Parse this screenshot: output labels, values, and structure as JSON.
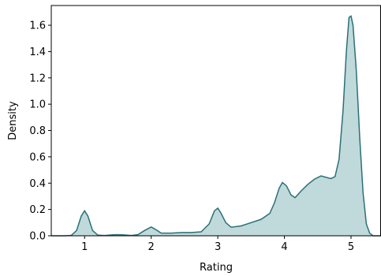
{
  "chart_data": {
    "type": "area",
    "title": "",
    "xlabel": "Rating",
    "ylabel": "Density",
    "xlim": [
      0.5,
      5.45
    ],
    "ylim": [
      0,
      1.75
    ],
    "x_ticks": [
      1,
      2,
      3,
      4,
      5
    ],
    "x_tick_labels": [
      "1",
      "2",
      "3",
      "4",
      "5"
    ],
    "y_ticks": [
      0.0,
      0.2,
      0.4,
      0.6,
      0.8,
      1.0,
      1.2,
      1.4,
      1.6
    ],
    "y_tick_labels": [
      "0.0",
      "0.2",
      "0.4",
      "0.6",
      "0.8",
      "1.0",
      "1.2",
      "1.4",
      "1.6"
    ],
    "grid": false,
    "series": [
      {
        "line_color": "#2a7078",
        "fill_color": "#c0d9da",
        "points": [
          [
            0.5,
            0.0
          ],
          [
            0.7,
            0.0
          ],
          [
            0.8,
            0.003
          ],
          [
            0.88,
            0.04
          ],
          [
            0.95,
            0.15
          ],
          [
            1.0,
            0.19
          ],
          [
            1.05,
            0.15
          ],
          [
            1.12,
            0.04
          ],
          [
            1.2,
            0.005
          ],
          [
            1.3,
            0.002
          ],
          [
            1.45,
            0.008
          ],
          [
            1.55,
            0.008
          ],
          [
            1.7,
            0.002
          ],
          [
            1.8,
            0.008
          ],
          [
            1.9,
            0.04
          ],
          [
            2.0,
            0.067
          ],
          [
            2.06,
            0.05
          ],
          [
            2.15,
            0.02
          ],
          [
            2.3,
            0.02
          ],
          [
            2.45,
            0.025
          ],
          [
            2.6,
            0.025
          ],
          [
            2.75,
            0.03
          ],
          [
            2.87,
            0.09
          ],
          [
            2.95,
            0.19
          ],
          [
            3.0,
            0.21
          ],
          [
            3.05,
            0.17
          ],
          [
            3.12,
            0.1
          ],
          [
            3.2,
            0.065
          ],
          [
            3.35,
            0.075
          ],
          [
            3.5,
            0.1
          ],
          [
            3.65,
            0.125
          ],
          [
            3.78,
            0.17
          ],
          [
            3.85,
            0.25
          ],
          [
            3.92,
            0.36
          ],
          [
            3.97,
            0.405
          ],
          [
            4.03,
            0.38
          ],
          [
            4.1,
            0.31
          ],
          [
            4.16,
            0.29
          ],
          [
            4.25,
            0.34
          ],
          [
            4.35,
            0.39
          ],
          [
            4.45,
            0.43
          ],
          [
            4.55,
            0.455
          ],
          [
            4.62,
            0.445
          ],
          [
            4.7,
            0.435
          ],
          [
            4.76,
            0.45
          ],
          [
            4.82,
            0.58
          ],
          [
            4.88,
            0.95
          ],
          [
            4.93,
            1.4
          ],
          [
            4.97,
            1.66
          ],
          [
            5.0,
            1.67
          ],
          [
            5.03,
            1.6
          ],
          [
            5.08,
            1.25
          ],
          [
            5.13,
            0.75
          ],
          [
            5.18,
            0.33
          ],
          [
            5.23,
            0.09
          ],
          [
            5.28,
            0.02
          ],
          [
            5.33,
            0.0
          ],
          [
            5.45,
            0.0
          ]
        ]
      }
    ]
  }
}
